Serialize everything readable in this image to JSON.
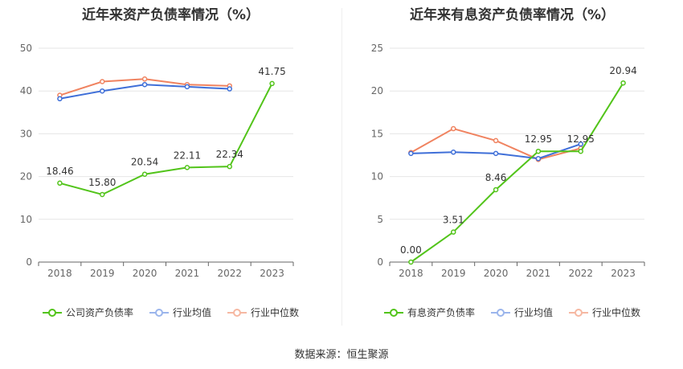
{
  "colors": {
    "company": "#52c41a",
    "average": "#3f6fd8",
    "median": "#f08360",
    "grid": "#e6e6e6",
    "axis": "#666666"
  },
  "footer": {
    "source": "数据来源：恒生聚源"
  },
  "chart_data": [
    {
      "type": "line",
      "title": "近年来资产负债率情况（%）",
      "categories": [
        "2018",
        "2019",
        "2020",
        "2021",
        "2022",
        "2023"
      ],
      "ylim": [
        0,
        50
      ],
      "yticks": [
        0,
        10,
        20,
        30,
        40,
        50
      ],
      "series": [
        {
          "name": "公司资产负债率",
          "key": "company",
          "values": [
            18.46,
            15.8,
            20.54,
            22.11,
            22.34,
            41.75
          ],
          "labels": [
            "18.46",
            "15.80",
            "20.54",
            "22.11",
            "22.34",
            "41.75"
          ]
        },
        {
          "name": "行业均值",
          "key": "average",
          "values": [
            38.2,
            40.0,
            41.5,
            41.0,
            40.5,
            null
          ]
        },
        {
          "name": "行业中位数",
          "key": "median",
          "values": [
            39.0,
            42.2,
            42.8,
            41.5,
            41.2,
            null
          ]
        }
      ]
    },
    {
      "type": "line",
      "title": "近年来有息资产负债率情况（%）",
      "categories": [
        "2018",
        "2019",
        "2020",
        "2021",
        "2022",
        "2023"
      ],
      "ylim": [
        0,
        25
      ],
      "yticks": [
        0,
        5,
        10,
        15,
        20,
        25
      ],
      "series": [
        {
          "name": "有息资产负债率",
          "key": "company",
          "values": [
            0.0,
            3.51,
            8.46,
            12.95,
            12.95,
            20.94
          ],
          "labels": [
            "0.00",
            "3.51",
            "8.46",
            "12.95",
            "12.95",
            "20.94"
          ]
        },
        {
          "name": "行业均值",
          "key": "average",
          "values": [
            12.7,
            12.85,
            12.7,
            12.1,
            13.8,
            null
          ]
        },
        {
          "name": "行业中位数",
          "key": "median",
          "values": [
            12.8,
            15.6,
            14.2,
            12.0,
            13.3,
            null
          ]
        }
      ]
    }
  ]
}
